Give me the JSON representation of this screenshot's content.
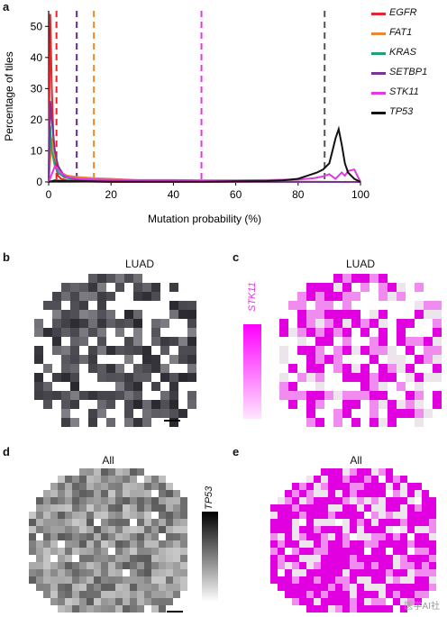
{
  "panels": {
    "a": "a",
    "b": "b",
    "c": "c",
    "d": "d",
    "e": "e"
  },
  "titles": {
    "b": "LUAD",
    "c": "LUAD",
    "d": "All",
    "e": "All"
  },
  "colorbars": {
    "c_label": "STK11",
    "d_label": "TP53"
  },
  "watermark": "医学AI社",
  "colors": {
    "EGFR": "#e3262a",
    "FAT1": "#e6892f",
    "KRAS": "#1fa27a",
    "SETBP1": "#7b3294",
    "STK11": "#e637e6",
    "TP53": "#111111",
    "map_gray": "#3a3a40",
    "map_magenta": "#e000e0"
  },
  "chart_data": {
    "type": "line",
    "title": "",
    "xlabel": "Mutation probability (%)",
    "ylabel": "Percentage of tiles",
    "xlim": [
      0,
      100
    ],
    "ylim": [
      0,
      55
    ],
    "xticks": [
      0,
      20,
      40,
      60,
      80,
      100
    ],
    "yticks": [
      0,
      10,
      20,
      30,
      40,
      50
    ],
    "legend_position": "right",
    "series": [
      {
        "name": "EGFR",
        "x": [
          0,
          0.5,
          1,
          1.5,
          2,
          3,
          4,
          6,
          10,
          20,
          100
        ],
        "y": [
          0,
          54,
          30,
          15,
          6,
          2,
          1,
          0.5,
          0.2,
          0,
          0
        ],
        "threshold": 2.5
      },
      {
        "name": "FAT1",
        "x": [
          0,
          1,
          2,
          4,
          6,
          10,
          15,
          20,
          30,
          40,
          100
        ],
        "y": [
          0,
          14,
          8,
          3,
          2,
          1.5,
          1.2,
          1,
          0.5,
          0.2,
          0
        ],
        "threshold": 14.5
      },
      {
        "name": "KRAS",
        "x": [
          0,
          0.5,
          1,
          2,
          3,
          5,
          8,
          12,
          20,
          100
        ],
        "y": [
          0,
          18,
          10,
          5,
          3,
          1.5,
          0.8,
          0.4,
          0.2,
          0
        ],
        "threshold": 9
      },
      {
        "name": "SETBP1",
        "x": [
          0,
          0.5,
          1,
          2,
          3,
          5,
          8,
          12,
          20,
          100
        ],
        "y": [
          0,
          26,
          20,
          10,
          5,
          2,
          1,
          0.5,
          0.2,
          0
        ],
        "threshold": 9
      },
      {
        "name": "STK11",
        "x": [
          0,
          2,
          4,
          6,
          10,
          15,
          20,
          30,
          40,
          50,
          60,
          70,
          80,
          85,
          88,
          90,
          92,
          94,
          95,
          96,
          98,
          100
        ],
        "y": [
          0,
          5,
          3,
          1.5,
          1,
          0.8,
          0.7,
          0.6,
          0.6,
          0.5,
          0.5,
          0.6,
          0.8,
          1.2,
          1.8,
          2.5,
          1,
          3,
          2,
          3.5,
          4,
          0
        ],
        "threshold": 49
      },
      {
        "name": "TP53",
        "x": [
          0,
          2,
          5,
          10,
          20,
          30,
          40,
          50,
          60,
          70,
          75,
          80,
          83,
          86,
          88,
          90,
          91,
          92,
          93,
          94,
          95,
          96,
          98,
          100
        ],
        "y": [
          0,
          0.5,
          0.3,
          0.2,
          0.1,
          0.1,
          0.1,
          0.1,
          0.2,
          0.3,
          0.5,
          1,
          2,
          3,
          4,
          6,
          10,
          14,
          17,
          12,
          6,
          3,
          1,
          0
        ],
        "threshold": 88.5
      }
    ]
  }
}
